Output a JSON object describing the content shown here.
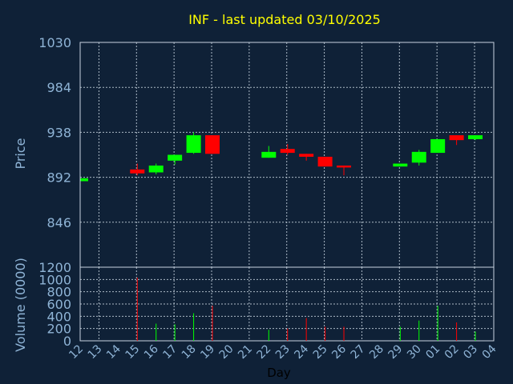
{
  "colors": {
    "background": "#0f2137",
    "up": "#00ff00",
    "down": "#ff0000",
    "title": "#ffff00",
    "axis_text": "#8fb4d6",
    "grid": "#c8d4e0"
  },
  "chart_data": {
    "type": "candlestick",
    "title": "INF - last updated 03/10/2025",
    "xlabel": "Day",
    "ylabel": "Price",
    "volume_label": "Volume (0000)",
    "grid": true,
    "price_ticks": [
      1030,
      984,
      938,
      892,
      846
    ],
    "ylim": [
      800,
      1030
    ],
    "volume_ticks": [
      0,
      200,
      400,
      600,
      800,
      1000,
      1200
    ],
    "volume_ylim": [
      0,
      1200
    ],
    "x_labels": [
      "12",
      "13",
      "14",
      "15",
      "16",
      "17",
      "18",
      "19",
      "20",
      "21",
      "22",
      "23",
      "24",
      "25",
      "26",
      "27",
      "28",
      "29",
      "30",
      "01",
      "02",
      "03",
      "04"
    ],
    "candles": [
      {
        "x": "12",
        "open": 888,
        "close": 891,
        "high": 891,
        "low": 888,
        "volume": 0
      },
      {
        "x": "15",
        "open": 900,
        "close": 896,
        "high": 906,
        "low": 894,
        "volume": 1030
      },
      {
        "x": "16",
        "open": 897,
        "close": 904,
        "high": 906,
        "low": 895,
        "volume": 280
      },
      {
        "x": "17",
        "open": 909,
        "close": 915,
        "high": 915,
        "low": 905,
        "volume": 270
      },
      {
        "x": "18",
        "open": 917,
        "close": 935,
        "high": 938,
        "low": 916,
        "volume": 450
      },
      {
        "x": "19",
        "open": 935,
        "close": 916,
        "high": 935,
        "low": 916,
        "volume": 570
      },
      {
        "x": "22",
        "open": 912,
        "close": 918,
        "high": 924,
        "low": 912,
        "volume": 180
      },
      {
        "x": "23",
        "open": 921,
        "close": 917,
        "high": 926,
        "low": 915,
        "volume": 200
      },
      {
        "x": "24",
        "open": 916,
        "close": 913,
        "high": 916,
        "low": 909,
        "volume": 370
      },
      {
        "x": "25",
        "open": 913,
        "close": 903,
        "high": 913,
        "low": 903,
        "volume": 230
      },
      {
        "x": "26",
        "open": 904,
        "close": 902,
        "high": 904,
        "low": 894,
        "volume": 230
      },
      {
        "x": "29",
        "open": 903,
        "close": 906,
        "high": 906,
        "low": 903,
        "volume": 230
      },
      {
        "x": "30",
        "open": 907,
        "close": 918,
        "high": 920,
        "low": 904,
        "volume": 330
      },
      {
        "x": "01",
        "open": 917,
        "close": 931,
        "high": 931,
        "low": 917,
        "volume": 570
      },
      {
        "x": "02",
        "open": 935,
        "close": 930,
        "high": 935,
        "low": 925,
        "volume": 300
      },
      {
        "x": "03",
        "open": 931,
        "close": 935,
        "high": 935,
        "low": 930,
        "volume": 150
      }
    ]
  }
}
